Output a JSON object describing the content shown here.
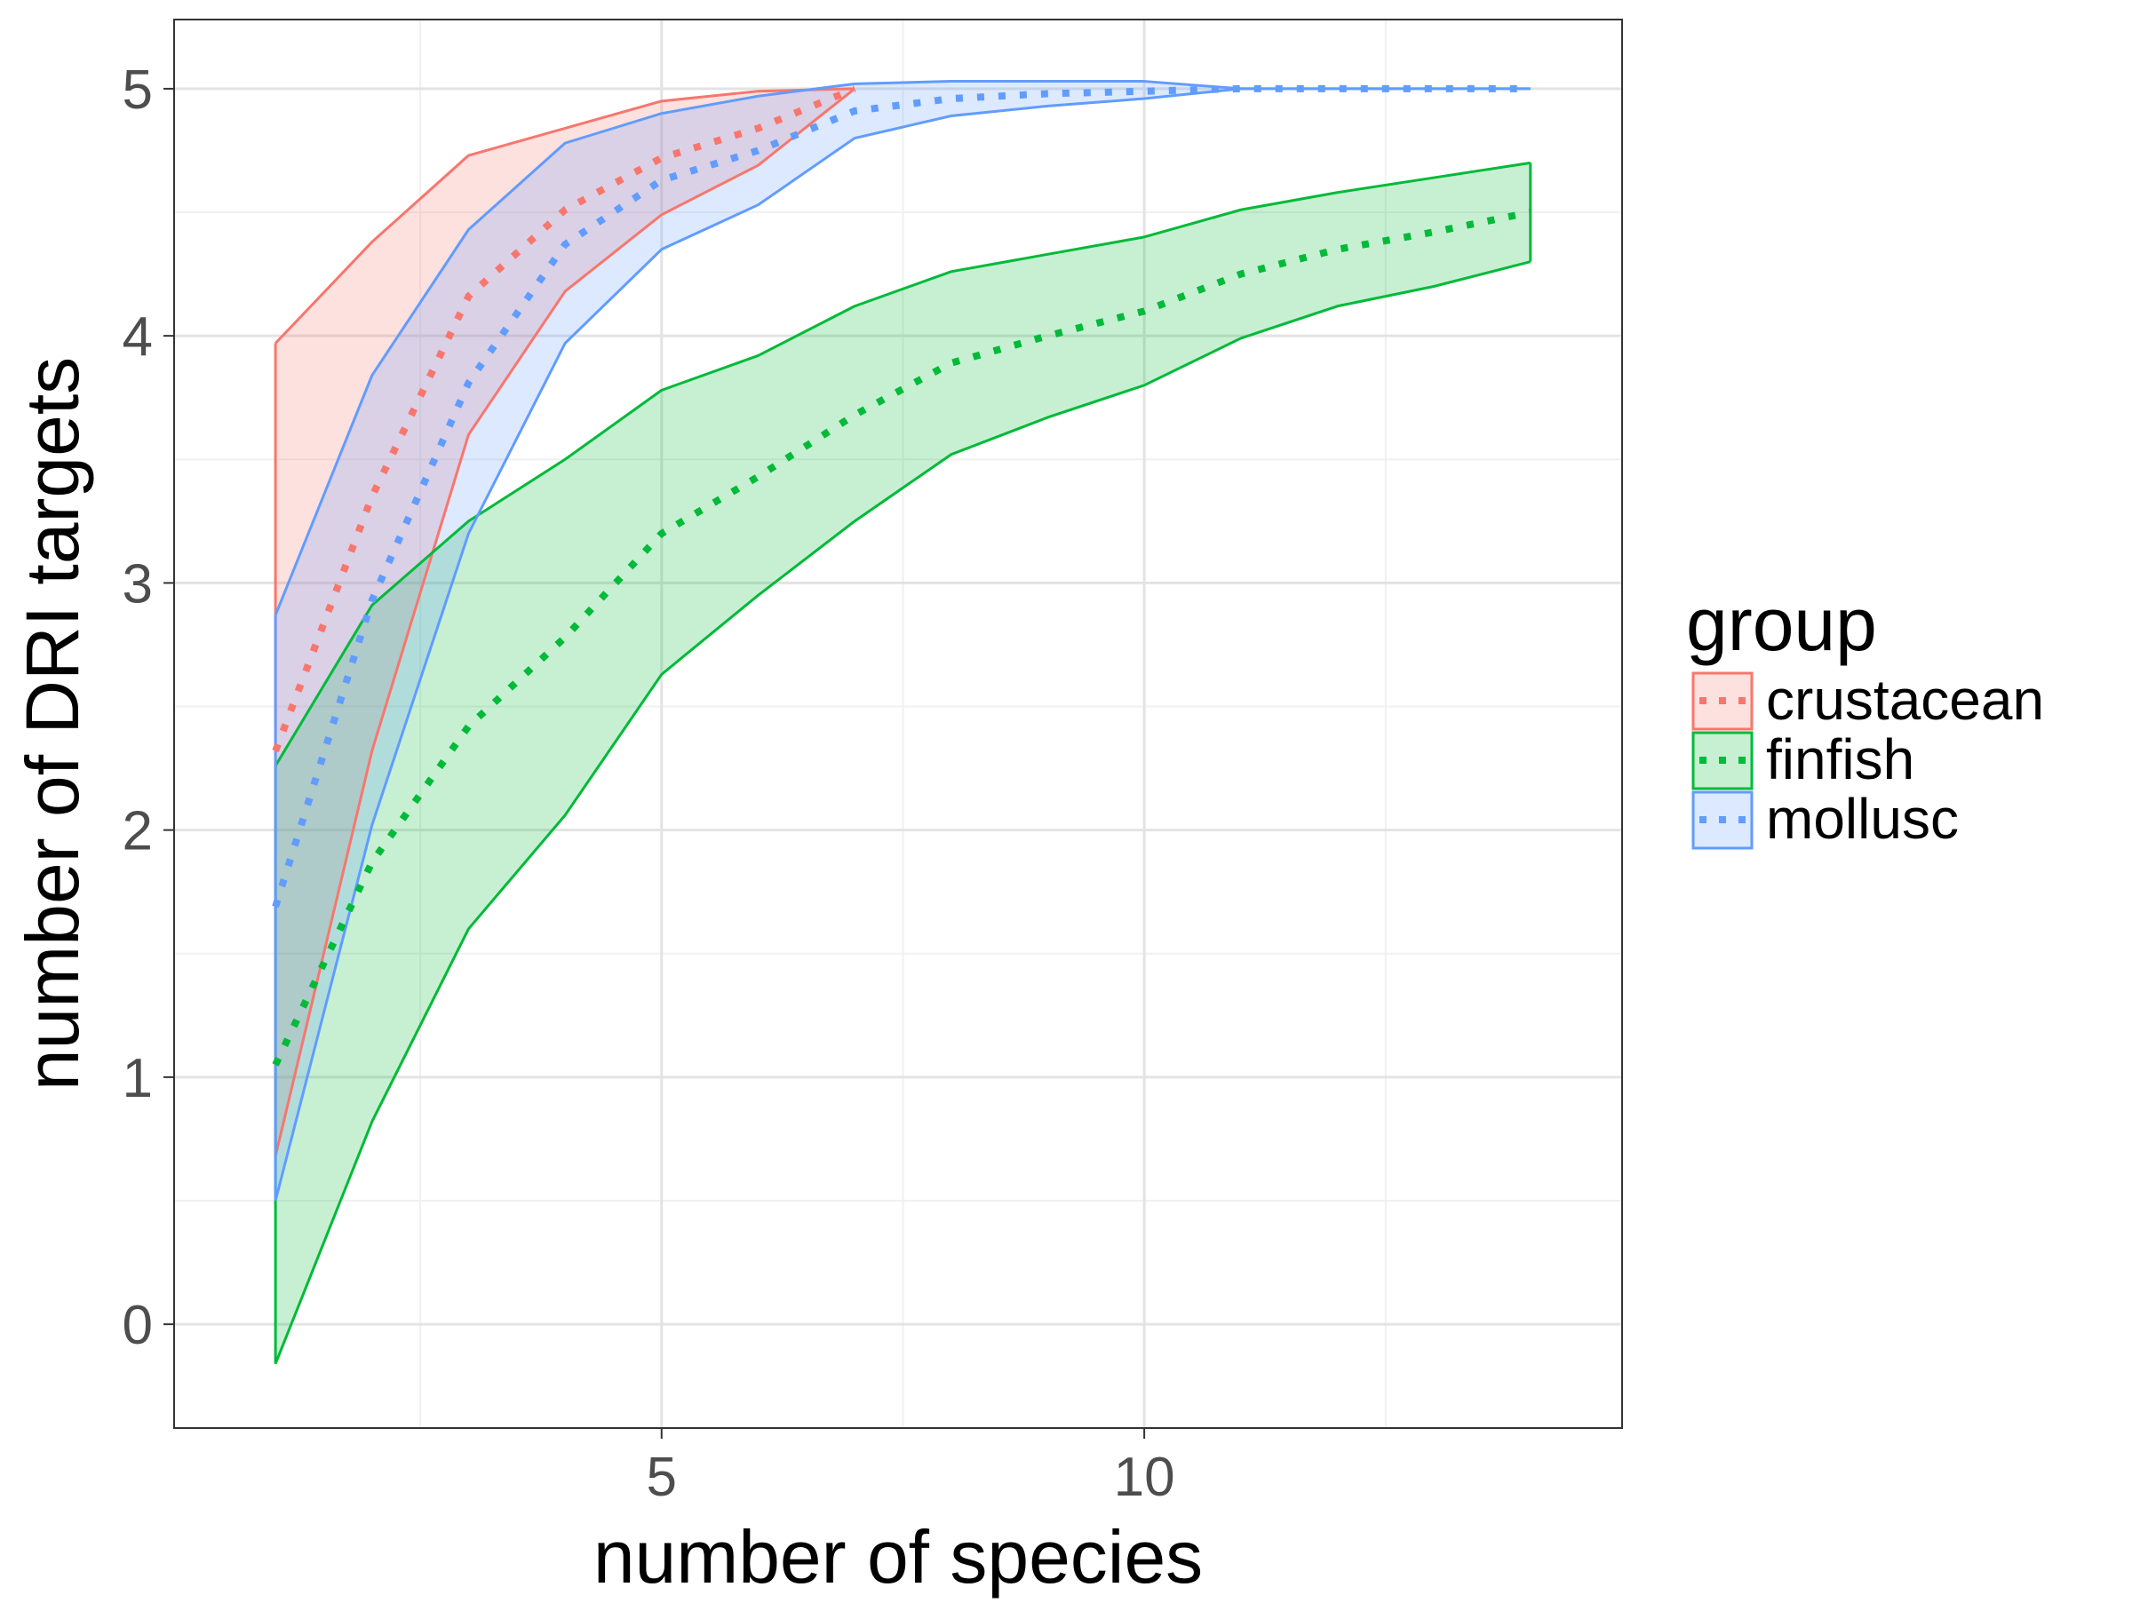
{
  "chart_data": {
    "type": "area",
    "title": "",
    "xlabel": "number of species",
    "ylabel": "number of DRI targets",
    "xlim": [
      -0.05,
      14.95
    ],
    "ylim": [
      -0.42,
      5.28
    ],
    "x_ticks": [
      5,
      10
    ],
    "x_minor_ticks": [
      2.5,
      7.5,
      12.5
    ],
    "y_ticks": [
      0,
      1,
      2,
      3,
      4,
      5
    ],
    "y_minor_ticks": [
      0.5,
      1.5,
      2.5,
      3.5,
      4.5
    ],
    "grid": true,
    "legend": {
      "title": "group",
      "position": "right"
    },
    "series": [
      {
        "name": "crustacean",
        "color": "#F8766D",
        "x": [
          1,
          2,
          3,
          4,
          5,
          6,
          7
        ],
        "upper": [
          3.97,
          4.38,
          4.73,
          4.84,
          4.95,
          4.99,
          5.0
        ],
        "lower": [
          0.68,
          2.32,
          3.6,
          4.18,
          4.49,
          4.69,
          5.0
        ],
        "mean": [
          2.32,
          3.35,
          4.16,
          4.51,
          4.72,
          4.84,
          5.0
        ]
      },
      {
        "name": "finfish",
        "color": "#00BA38",
        "x": [
          1,
          2,
          3,
          4,
          5,
          6,
          7,
          8,
          9,
          10,
          11,
          12,
          13,
          14
        ],
        "upper": [
          2.26,
          2.91,
          3.25,
          3.5,
          3.78,
          3.92,
          4.12,
          4.26,
          4.33,
          4.4,
          4.51,
          4.58,
          4.64,
          4.7
        ],
        "lower": [
          -0.16,
          0.82,
          1.6,
          2.06,
          2.63,
          2.95,
          3.25,
          3.52,
          3.67,
          3.8,
          3.99,
          4.12,
          4.2,
          4.3
        ],
        "mean": [
          1.05,
          1.87,
          2.42,
          2.78,
          3.2,
          3.43,
          3.68,
          3.89,
          4.0,
          4.1,
          4.25,
          4.35,
          4.42,
          4.5
        ]
      },
      {
        "name": "mollusc",
        "color": "#619CFF",
        "x": [
          1,
          2,
          3,
          4,
          5,
          6,
          7,
          8,
          9,
          10,
          11,
          12,
          13,
          14
        ],
        "upper": [
          2.87,
          3.84,
          4.43,
          4.78,
          4.9,
          4.97,
          5.02,
          5.03,
          5.03,
          5.03,
          5.0,
          5.0,
          5.0,
          5.0
        ],
        "lower": [
          0.5,
          2.02,
          3.2,
          3.97,
          4.35,
          4.53,
          4.8,
          4.89,
          4.93,
          4.96,
          5.0,
          5.0,
          5.0,
          5.0
        ],
        "mean": [
          1.69,
          2.93,
          3.81,
          4.37,
          4.63,
          4.75,
          4.91,
          4.96,
          4.98,
          4.99,
          5.0,
          5.0,
          5.0,
          5.0
        ]
      }
    ]
  }
}
